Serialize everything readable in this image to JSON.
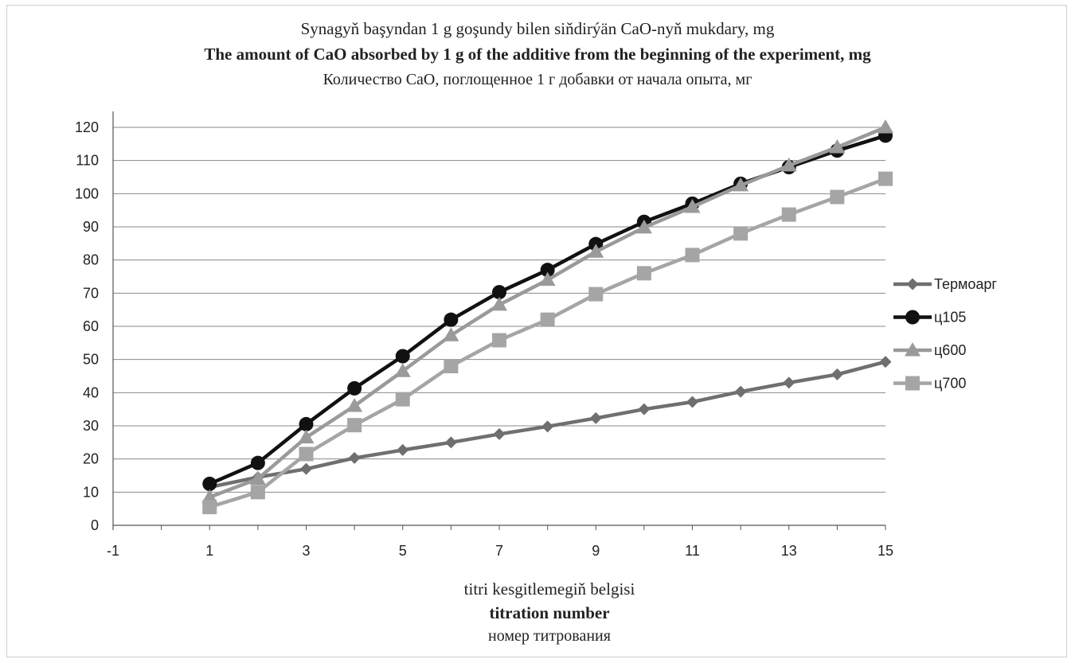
{
  "chart_data": {
    "type": "line",
    "title_lines": [
      "Synagyň başyndan 1 g goşundy bilen siňdirýän CaO-nyň mukdary, mg",
      "The amount of CaO absorbed by 1 g of the additive from the beginning of the experiment, mg",
      "Количество CaO, поглощенное 1 г добавки от начала опыта, мг"
    ],
    "xlabel_lines": [
      "titri kesgitlemegiň belgisi",
      "titration number",
      "номер титрования"
    ],
    "ylabel": "",
    "xlim": [
      -1,
      15
    ],
    "ylim": [
      0,
      120
    ],
    "x_ticks": [
      -1,
      1,
      3,
      5,
      7,
      9,
      11,
      13,
      15
    ],
    "y_ticks": [
      0,
      10,
      20,
      30,
      40,
      50,
      60,
      70,
      80,
      90,
      100,
      110,
      120
    ],
    "grid": "horizontal",
    "legend_position": "right",
    "x": [
      1,
      2,
      3,
      4,
      5,
      6,
      7,
      8,
      9,
      10,
      11,
      12,
      13,
      14,
      15
    ],
    "series": [
      {
        "name": "Термоарг",
        "marker": "diamond",
        "color": "#6f6f6f",
        "values": [
          11.5,
          14.5,
          17,
          20.3,
          22.7,
          25,
          27.5,
          29.8,
          32.3,
          35,
          37.2,
          40.3,
          43,
          45.5,
          49.3
        ]
      },
      {
        "name": "ц105",
        "marker": "circle",
        "color": "#111111",
        "values": [
          12.5,
          18.8,
          30.5,
          41.3,
          51,
          62,
          70.3,
          77,
          84.8,
          91.5,
          97,
          103,
          108,
          113,
          117.5
        ]
      },
      {
        "name": "ц600",
        "marker": "triangle",
        "color": "#9a9a9a",
        "values": [
          8.5,
          14,
          26.5,
          36,
          46.5,
          57.3,
          66.5,
          74,
          82.5,
          89.8,
          96,
          102.5,
          108.5,
          114,
          120
        ]
      },
      {
        "name": "ц700",
        "marker": "square",
        "color": "#a5a5a5",
        "values": [
          5.5,
          10,
          21.5,
          30.2,
          38,
          48,
          55.8,
          62,
          69.7,
          76,
          81.5,
          88,
          93.7,
          99,
          104.5
        ]
      }
    ]
  }
}
